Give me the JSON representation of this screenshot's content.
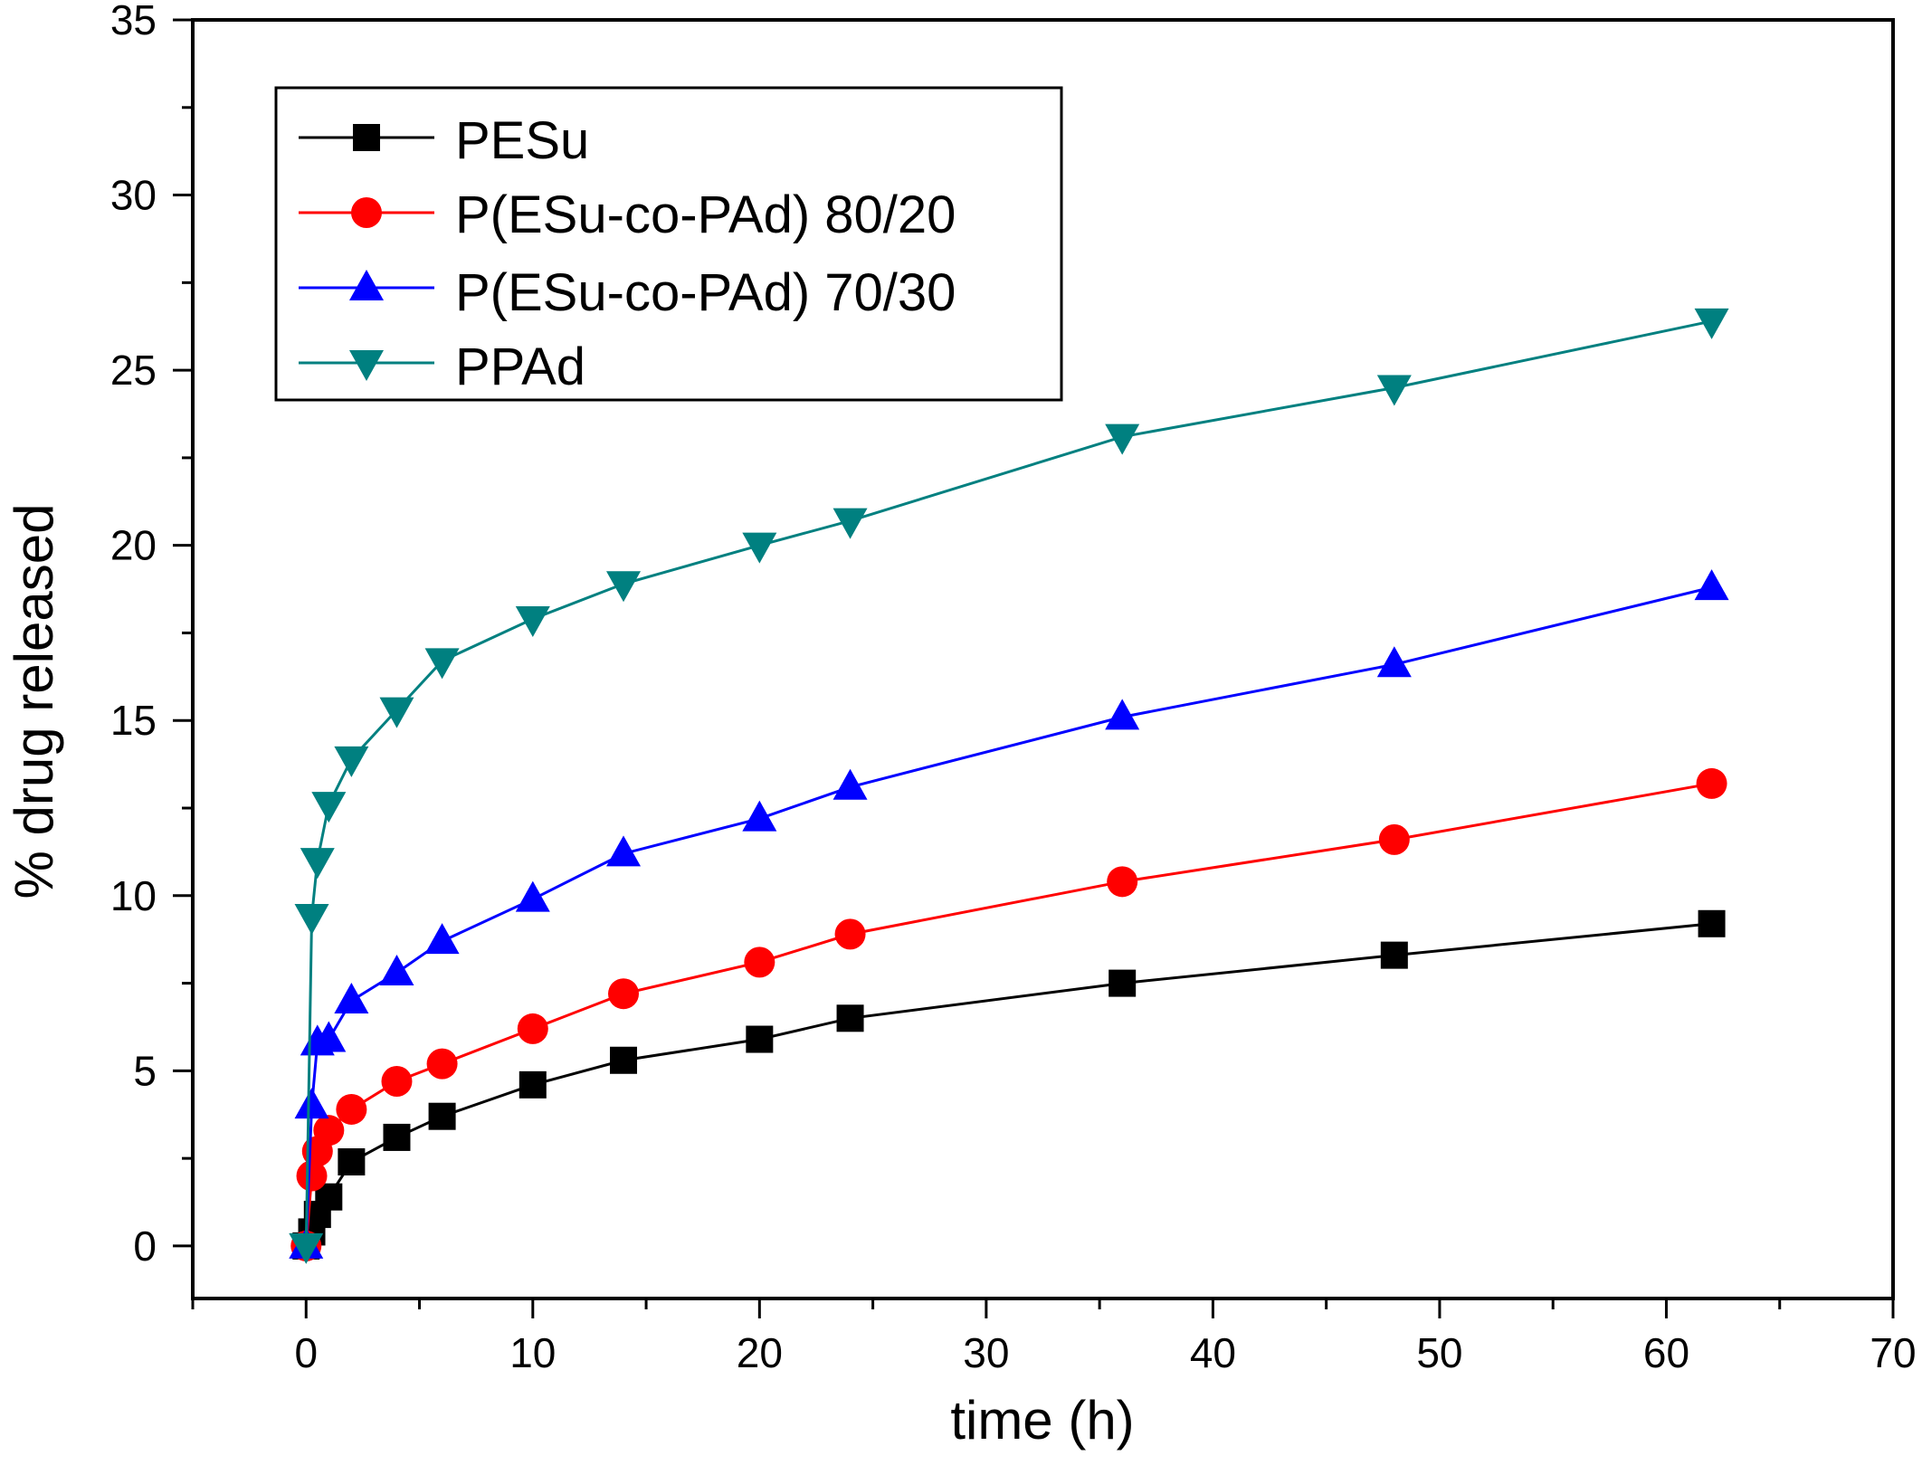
{
  "chart_data": {
    "type": "line",
    "title": "",
    "xlabel": "time (h)",
    "ylabel": "% drug released",
    "xlim": [
      -5,
      70
    ],
    "ylim": [
      -1.5,
      35
    ],
    "xticks": [
      0,
      10,
      20,
      30,
      40,
      50,
      60,
      70
    ],
    "yticks": [
      0,
      5,
      10,
      15,
      20,
      25,
      30,
      35
    ],
    "grid": false,
    "legend_position": "top-left",
    "series": [
      {
        "name": "PESu",
        "color": "#000000",
        "marker": "square",
        "x": [
          0,
          0.25,
          0.5,
          1,
          2,
          4,
          6,
          10,
          14,
          20,
          24,
          36,
          48,
          62
        ],
        "y": [
          0,
          0.4,
          0.9,
          1.4,
          2.4,
          3.1,
          3.7,
          4.6,
          5.3,
          5.9,
          6.5,
          7.5,
          8.3,
          9.2
        ]
      },
      {
        "name": "P(ESu-co-PAd) 80/20",
        "color": "#ff0000",
        "marker": "circle",
        "x": [
          0,
          0.25,
          0.5,
          1,
          2,
          4,
          6,
          10,
          14,
          20,
          24,
          36,
          48,
          62
        ],
        "y": [
          0,
          2.0,
          2.7,
          3.3,
          3.9,
          4.7,
          5.2,
          6.2,
          7.2,
          8.1,
          8.9,
          10.4,
          11.6,
          13.2
        ]
      },
      {
        "name": "P(ESu-co-PAd) 70/30",
        "color": "#0000ff",
        "marker": "triangle-up",
        "x": [
          0,
          0.25,
          0.5,
          1,
          2,
          4,
          6,
          10,
          14,
          20,
          24,
          36,
          48,
          62
        ],
        "y": [
          0,
          4.0,
          5.8,
          5.9,
          7.0,
          7.8,
          8.7,
          9.9,
          11.2,
          12.2,
          13.1,
          15.1,
          16.6,
          18.8
        ]
      },
      {
        "name": "PPAd",
        "color": "#008080",
        "marker": "triangle-down",
        "x": [
          0,
          0.25,
          0.5,
          1,
          2,
          4,
          6,
          10,
          14,
          20,
          24,
          36,
          48,
          62
        ],
        "y": [
          0,
          9.4,
          11.0,
          12.6,
          13.9,
          15.3,
          16.7,
          17.9,
          18.9,
          20.0,
          20.7,
          23.1,
          24.5,
          26.4
        ]
      }
    ]
  }
}
